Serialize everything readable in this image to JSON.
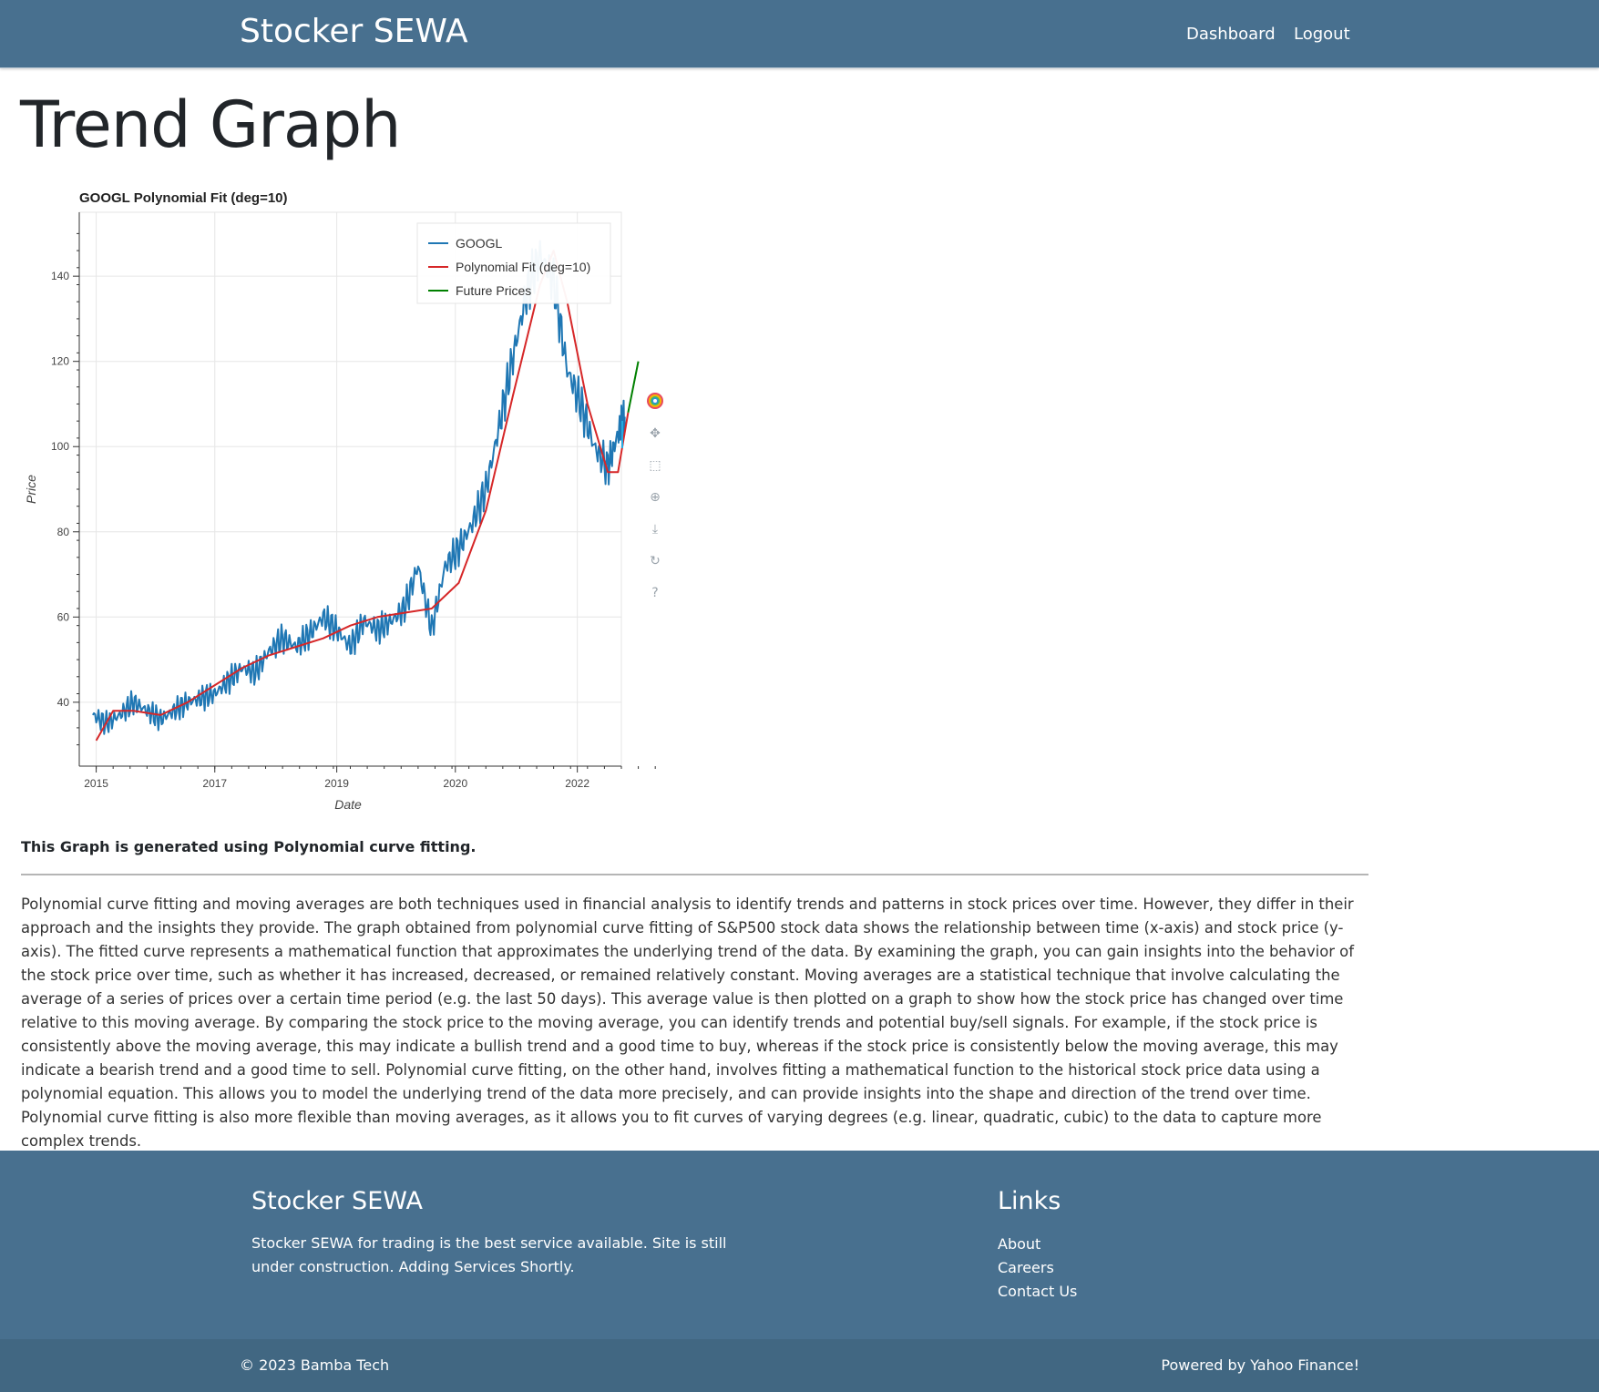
{
  "navbar": {
    "brand": "Stocker SEWA",
    "links": [
      "Dashboard",
      "Logout"
    ]
  },
  "page": {
    "title": "Trend Graph",
    "caption": "This Graph is generated using Polynomial curve fitting.",
    "description": "Polynomial curve fitting and moving averages are both techniques used in financial analysis to identify trends and patterns in stock prices over time. However, they differ in their approach and the insights they provide. The graph obtained from polynomial curve fitting of S&P500 stock data shows the relationship between time (x-axis) and stock price (y-axis). The fitted curve represents a mathematical function that approximates the underlying trend of the data. By examining the graph, you can gain insights into the behavior of the stock price over time, such as whether it has increased, decreased, or remained relatively constant. Moving averages are a statistical technique that involve calculating the average of a series of prices over a certain time period (e.g. the last 50 days). This average value is then plotted on a graph to show how the stock price has changed over time relative to this moving average. By comparing the stock price to the moving average, you can identify trends and potential buy/sell signals. For example, if the stock price is consistently above the moving average, this may indicate a bullish trend and a good time to buy, whereas if the stock price is consistently below the moving average, this may indicate a bearish trend and a good time to sell. Polynomial curve fitting, on the other hand, involves fitting a mathematical function to the historical stock price data using a polynomial equation. This allows you to model the underlying trend of the data more precisely, and can provide insights into the shape and direction of the trend over time. Polynomial curve fitting is also more flexible than moving averages, as it allows you to fit curves of varying degrees (e.g. linear, quadratic, cubic) to the data to capture more complex trends."
  },
  "toolbar": {
    "tools": [
      "bokeh-logo-icon",
      "pan-icon",
      "box-zoom-icon",
      "wheel-zoom-icon",
      "save-icon",
      "reset-icon",
      "help-icon"
    ]
  },
  "chart_data": {
    "type": "line",
    "title": "GOOGL Polynomial Fit (deg=10)",
    "xlabel": "Date",
    "ylabel": "Price",
    "xlim": [
      2015.0,
      2023.0
    ],
    "ylim": [
      25,
      155
    ],
    "x_ticks": [
      "2015",
      "2017",
      "2019",
      "2020",
      "2022"
    ],
    "y_ticks": [
      40,
      60,
      80,
      100,
      120,
      140
    ],
    "grid": true,
    "legend_position": "top-right",
    "series": [
      {
        "name": "GOOGL",
        "color": "#1f77b4",
        "points": [
          [
            2015.2,
            37
          ],
          [
            2015.4,
            35
          ],
          [
            2015.6,
            37
          ],
          [
            2015.8,
            40
          ],
          [
            2016.0,
            38
          ],
          [
            2016.2,
            36
          ],
          [
            2016.4,
            38
          ],
          [
            2016.6,
            40
          ],
          [
            2016.8,
            41
          ],
          [
            2017.0,
            42
          ],
          [
            2017.2,
            45
          ],
          [
            2017.4,
            48
          ],
          [
            2017.6,
            47
          ],
          [
            2017.8,
            52
          ],
          [
            2018.0,
            55
          ],
          [
            2018.2,
            53
          ],
          [
            2018.4,
            56
          ],
          [
            2018.6,
            60
          ],
          [
            2018.8,
            57
          ],
          [
            2019.0,
            53
          ],
          [
            2019.2,
            59
          ],
          [
            2019.4,
            57
          ],
          [
            2019.6,
            59
          ],
          [
            2019.8,
            62
          ],
          [
            2020.0,
            72
          ],
          [
            2020.2,
            57
          ],
          [
            2020.4,
            72
          ],
          [
            2020.6,
            76
          ],
          [
            2020.8,
            82
          ],
          [
            2021.0,
            90
          ],
          [
            2021.2,
            105
          ],
          [
            2021.4,
            121
          ],
          [
            2021.6,
            136
          ],
          [
            2021.8,
            145
          ],
          [
            2022.0,
            139
          ],
          [
            2022.2,
            118
          ],
          [
            2022.4,
            110
          ],
          [
            2022.6,
            100
          ],
          [
            2022.8,
            95
          ],
          [
            2022.95,
            103
          ],
          [
            2023.05,
            107
          ]
        ]
      },
      {
        "name": "Polynomial Fit (deg=10)",
        "color": "#d62728",
        "points": [
          [
            2015.25,
            31
          ],
          [
            2015.5,
            38
          ],
          [
            2015.8,
            38
          ],
          [
            2016.2,
            37
          ],
          [
            2016.6,
            40
          ],
          [
            2017.0,
            44
          ],
          [
            2017.4,
            48
          ],
          [
            2017.8,
            51
          ],
          [
            2018.2,
            53
          ],
          [
            2018.6,
            55
          ],
          [
            2019.0,
            58
          ],
          [
            2019.4,
            60
          ],
          [
            2019.8,
            61
          ],
          [
            2020.2,
            62
          ],
          [
            2020.6,
            68
          ],
          [
            2021.0,
            85
          ],
          [
            2021.4,
            112
          ],
          [
            2021.8,
            138
          ],
          [
            2022.0,
            146
          ],
          [
            2022.2,
            134
          ],
          [
            2022.5,
            110
          ],
          [
            2022.8,
            94
          ],
          [
            2022.95,
            94
          ],
          [
            2023.1,
            108
          ]
        ]
      },
      {
        "name": "Future Prices",
        "color": "#008000",
        "points": [
          [
            2023.1,
            108
          ],
          [
            2023.25,
            120
          ]
        ]
      }
    ]
  },
  "footer": {
    "brand": "Stocker SEWA",
    "text": "Stocker SEWA for trading is the best service available. Site is still under construction. Adding Services Shortly.",
    "links_title": "Links",
    "links": [
      "About",
      "Careers",
      "Contact Us"
    ],
    "copyright": "© 2023 Bamba Tech",
    "powered_by": "Powered by Yahoo Finance!"
  }
}
